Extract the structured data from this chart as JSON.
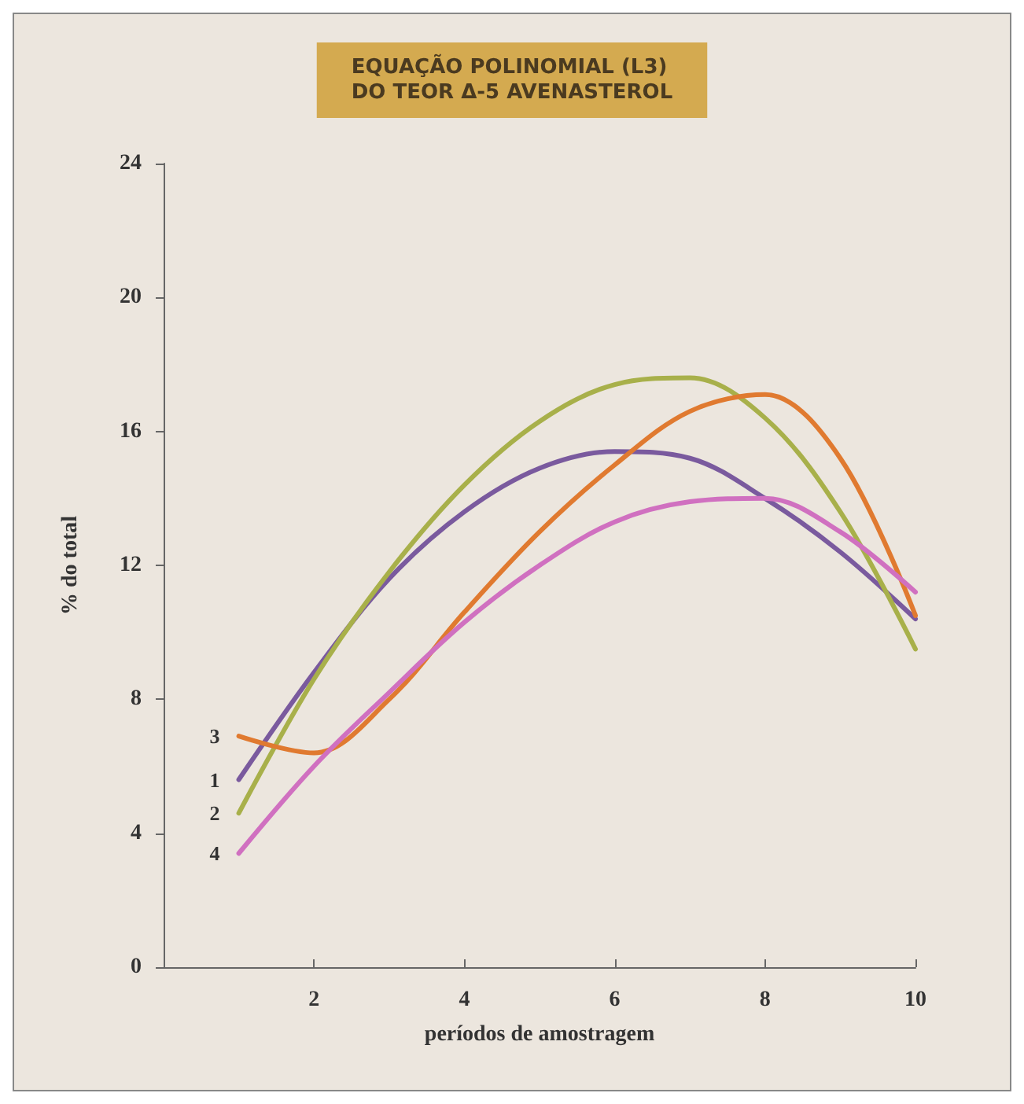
{
  "chart_data": {
    "type": "line",
    "title": "EQUAÇÃO POLINOMIAL (L3)\nDO TEOR Δ-5 AVENASTEROL",
    "xlabel": "períodos de amostragem",
    "ylabel": "% do total",
    "x": [
      1,
      2,
      3,
      4,
      5,
      6,
      7,
      8,
      9,
      10
    ],
    "series": [
      {
        "name": "1",
        "color": "#7a5a9e",
        "values": [
          5.6,
          8.8,
          11.6,
          13.6,
          14.9,
          15.4,
          15.2,
          14.0,
          12.4,
          10.4
        ]
      },
      {
        "name": "2",
        "color": "#a8b04a",
        "values": [
          4.6,
          8.6,
          11.8,
          14.4,
          16.3,
          17.4,
          17.6,
          16.4,
          13.6,
          9.5
        ]
      },
      {
        "name": "3",
        "color": "#e07a30",
        "values": [
          6.9,
          6.4,
          8.0,
          10.6,
          13.0,
          15.0,
          16.6,
          17.1,
          15.2,
          10.5
        ]
      },
      {
        "name": "4",
        "color": "#d070c0",
        "values": [
          3.4,
          6.0,
          8.2,
          10.3,
          12.0,
          13.3,
          13.9,
          14.0,
          13.0,
          11.2
        ]
      }
    ],
    "xlim": [
      0,
      10
    ],
    "xticks": [
      {
        "value": 0,
        "label": null
      },
      2,
      4,
      6,
      8,
      10
    ],
    "ylim": [
      0,
      24
    ],
    "yticks": [
      0,
      4,
      8,
      12,
      16,
      20,
      24
    ],
    "grid": false,
    "legend": false,
    "marker": "none",
    "line_style": "solid"
  }
}
